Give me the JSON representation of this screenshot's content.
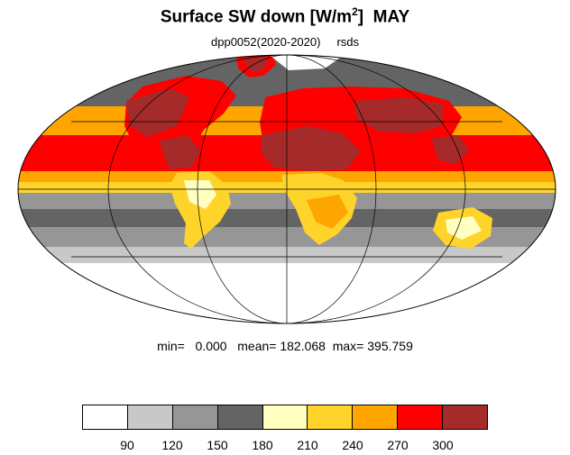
{
  "title": {
    "main": "Surface SW down [W/m",
    "sup": "2",
    "close": "]",
    "month": "MAY"
  },
  "subtitle": {
    "experiment": "dpp0052(2020-2020)",
    "variable": "rsds"
  },
  "stats": {
    "min_label": "min=",
    "min": "0.000",
    "mean_label": "mean=",
    "mean": "182.068",
    "max_label": "max=",
    "max": "395.759"
  },
  "colorbar": {
    "colors": [
      "#ffffff",
      "#c8c8c8",
      "#969696",
      "#646464",
      "#ffffc0",
      "#ffd42a",
      "#ffa500",
      "#ff0000",
      "#a52a2a"
    ],
    "ticks": [
      "90",
      "120",
      "150",
      "180",
      "210",
      "240",
      "270",
      "300"
    ]
  }
}
